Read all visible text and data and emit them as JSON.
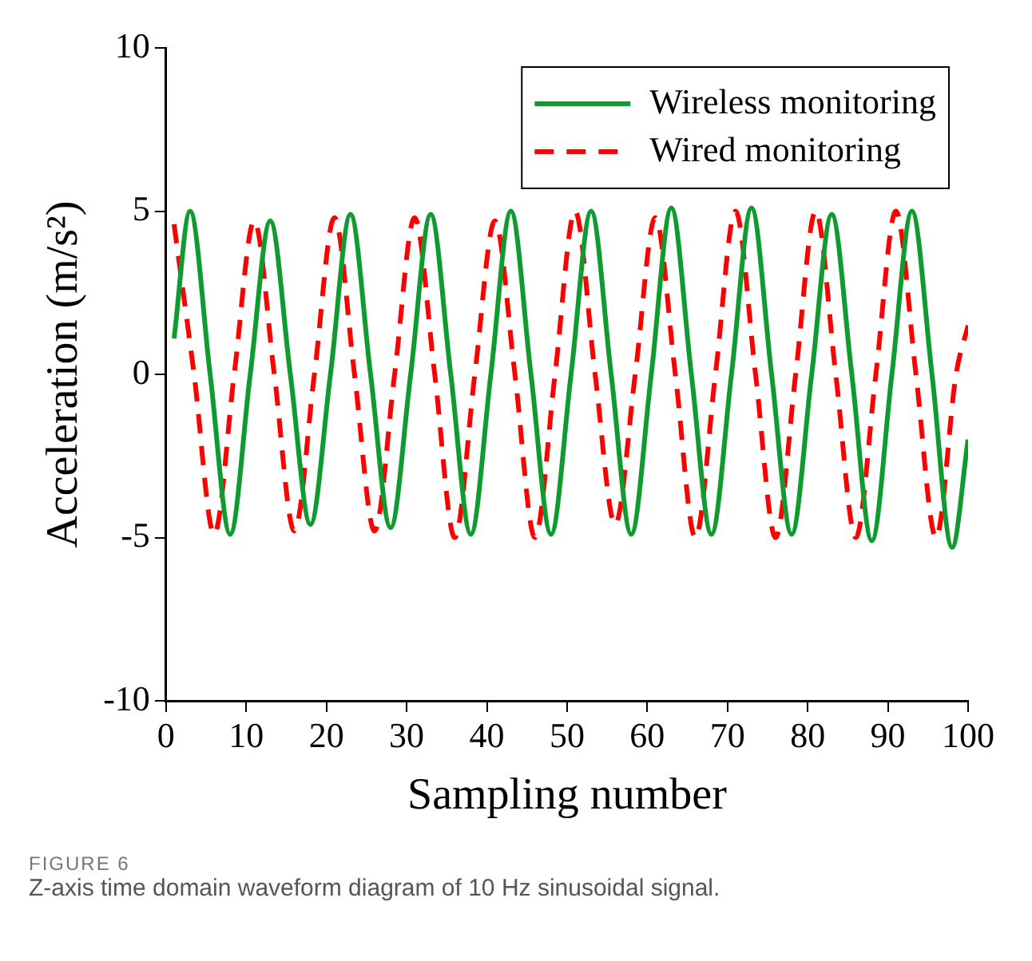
{
  "chart_data": {
    "type": "line",
    "xlabel": "Sampling number",
    "ylabel": "Acceleration (m/s²)",
    "xlim": [
      0,
      100
    ],
    "xticks": [
      0,
      10,
      20,
      30,
      40,
      50,
      60,
      70,
      80,
      90,
      100
    ],
    "ylim": [
      -10,
      10
    ],
    "yticks": [
      -10,
      -5,
      0,
      5,
      10
    ],
    "grid": false,
    "legend": "top right",
    "marker": "none",
    "series": [
      {
        "name": "Wireless monitoring",
        "color": "#109b31",
        "line_style": "solid",
        "x": [
          1,
          3,
          5.5,
          8,
          10.5,
          13,
          15.5,
          18,
          20.5,
          23,
          25.5,
          28,
          30.5,
          33,
          35.5,
          38,
          40.5,
          43,
          45.5,
          48,
          50.5,
          53,
          55.5,
          58,
          60.5,
          63,
          65.5,
          68,
          70.5,
          73,
          75.5,
          78,
          80.5,
          83,
          85.5,
          88,
          90.5,
          93,
          95.5,
          98,
          100
        ],
        "values": [
          1.1,
          5.0,
          0,
          -4.9,
          0,
          4.7,
          0,
          -4.6,
          0,
          4.9,
          0,
          -4.7,
          0,
          4.9,
          0,
          -4.9,
          0,
          5.0,
          0,
          -4.9,
          0,
          5.0,
          0,
          -4.9,
          0,
          5.1,
          0,
          -4.9,
          0,
          5.1,
          0,
          -4.9,
          0,
          4.9,
          0,
          -5.1,
          0,
          5.0,
          0,
          -5.3,
          -2.0
        ]
      },
      {
        "name": "Wired monitoring",
        "color": "#ff0000",
        "line_style": "dashed",
        "x": [
          1,
          3.5,
          6,
          8.5,
          11,
          13.5,
          16,
          18.5,
          21,
          23.5,
          26,
          28.5,
          31,
          33.5,
          36,
          38.5,
          41,
          43.5,
          46,
          48.5,
          51,
          53.5,
          56,
          58.5,
          61,
          63.5,
          66,
          68.5,
          71,
          73.5,
          76,
          78.5,
          81,
          83.5,
          86,
          88.5,
          91,
          93.5,
          96,
          98.5,
          100
        ],
        "values": [
          4.6,
          0,
          -4.9,
          0,
          4.7,
          0,
          -4.8,
          0,
          4.8,
          0,
          -4.8,
          0,
          4.8,
          0,
          -5.0,
          0,
          4.7,
          0,
          -5.0,
          0,
          5.0,
          0,
          -4.6,
          0,
          4.8,
          0,
          -5.0,
          0,
          5.0,
          0,
          -5.0,
          0,
          5.0,
          0,
          -5.0,
          0,
          5.0,
          0,
          -5.0,
          0,
          1.5
        ]
      }
    ],
    "annotations": [
      "FIGURE 6",
      "Z-axis time domain waveform diagram of 10 Hz sinusoidal signal."
    ]
  }
}
